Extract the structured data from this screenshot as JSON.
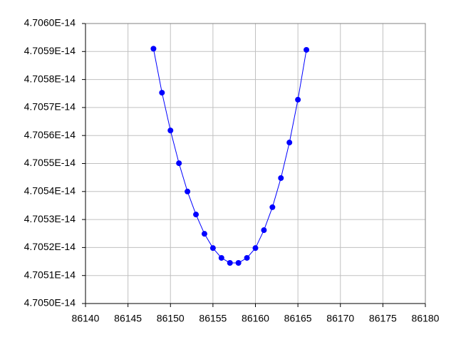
{
  "chart_data": {
    "type": "scatter",
    "series": [
      {
        "color": "#0000ff",
        "x": [
          86148,
          86149,
          86150,
          86151,
          86152,
          86153,
          86154,
          86155,
          86156,
          86157,
          86158,
          86159,
          86160,
          86161,
          86162,
          86163,
          86164,
          86165,
          86166
        ],
        "values": [
          4.70591e-14,
          4.705753e-14,
          4.705618e-14,
          4.705501e-14,
          4.7054e-14,
          4.705318e-14,
          4.705249e-14,
          4.705198e-14,
          4.705163e-14,
          4.705145e-14,
          4.705145e-14,
          4.705163e-14,
          4.705198e-14,
          4.705262e-14,
          4.705344e-14,
          4.705448e-14,
          4.705575e-14,
          4.705728e-14,
          4.705906e-14
        ]
      }
    ],
    "xlim": [
      86140,
      86180
    ],
    "xticks": [
      86140,
      86145,
      86150,
      86155,
      86160,
      86165,
      86170,
      86175,
      86180
    ],
    "ylim": [
      4.705e-14,
      4.706e-14
    ],
    "yticks": [
      {
        "value": 4.705e-14,
        "label": "4.7050E-14"
      },
      {
        "value": 4.7051e-14,
        "label": "4.7051E-14"
      },
      {
        "value": 4.7052e-14,
        "label": "4.7052E-14"
      },
      {
        "value": 4.7053e-14,
        "label": "4.7053E-14"
      },
      {
        "value": 4.7054e-14,
        "label": "4.7054E-14"
      },
      {
        "value": 4.7055e-14,
        "label": "4.7055E-14"
      },
      {
        "value": 4.7056e-14,
        "label": "4.7056E-14"
      },
      {
        "value": 4.7057e-14,
        "label": "4.7057E-14"
      },
      {
        "value": 4.7058e-14,
        "label": "4.7058E-14"
      },
      {
        "value": 4.7059e-14,
        "label": "4.7059E-14"
      },
      {
        "value": 4.706e-14,
        "label": "4.7060E-14"
      }
    ],
    "grid": true
  }
}
